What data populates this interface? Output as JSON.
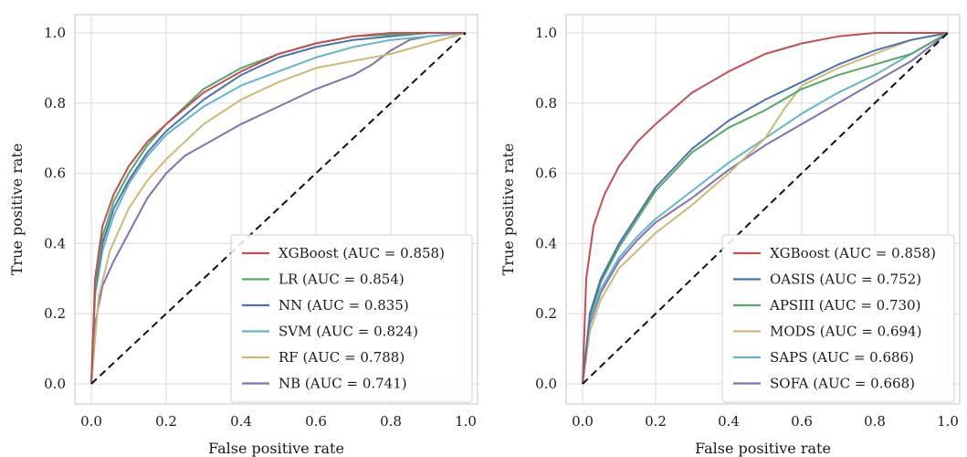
{
  "chart_data": [
    {
      "type": "line",
      "xlabel": "False positive rate",
      "ylabel": "True positive rate",
      "xlim": [
        0,
        1
      ],
      "ylim": [
        0,
        1
      ],
      "xticks": [
        "0.0",
        "0.2",
        "0.4",
        "0.6",
        "0.8",
        "1.0"
      ],
      "yticks": [
        "0.0",
        "0.2",
        "0.4",
        "0.6",
        "0.8",
        "1.0"
      ],
      "grid": true,
      "legend_position": "bottom-right",
      "reference_line": {
        "x": [
          0,
          1
        ],
        "y": [
          0,
          1
        ],
        "style": "dashed",
        "color": "#111111"
      },
      "series": [
        {
          "name": "XGBoost (AUC = 0.858)",
          "color": "#c44e52",
          "x": [
            0,
            0.01,
            0.03,
            0.06,
            0.1,
            0.15,
            0.2,
            0.3,
            0.4,
            0.5,
            0.6,
            0.7,
            0.8,
            0.9,
            1.0
          ],
          "y": [
            0,
            0.3,
            0.45,
            0.54,
            0.62,
            0.69,
            0.74,
            0.83,
            0.89,
            0.94,
            0.97,
            0.99,
            1.0,
            1.0,
            1.0
          ]
        },
        {
          "name": "LR (AUC = 0.854)",
          "color": "#55a868",
          "x": [
            0,
            0.01,
            0.03,
            0.06,
            0.1,
            0.15,
            0.2,
            0.3,
            0.4,
            0.5,
            0.6,
            0.7,
            0.8,
            0.9,
            1.0
          ],
          "y": [
            0,
            0.28,
            0.42,
            0.52,
            0.6,
            0.68,
            0.74,
            0.84,
            0.9,
            0.94,
            0.97,
            0.99,
            0.995,
            1.0,
            1.0
          ]
        },
        {
          "name": "NN (AUC = 0.835)",
          "color": "#4c72b0",
          "x": [
            0,
            0.01,
            0.03,
            0.06,
            0.1,
            0.15,
            0.2,
            0.3,
            0.4,
            0.5,
            0.6,
            0.7,
            0.8,
            0.9,
            1.0
          ],
          "y": [
            0,
            0.27,
            0.4,
            0.5,
            0.58,
            0.66,
            0.72,
            0.81,
            0.88,
            0.93,
            0.96,
            0.98,
            0.99,
            1.0,
            1.0
          ]
        },
        {
          "name": "SVM (AUC = 0.824)",
          "color": "#64b5cd",
          "x": [
            0,
            0.01,
            0.03,
            0.06,
            0.1,
            0.15,
            0.2,
            0.3,
            0.4,
            0.5,
            0.6,
            0.7,
            0.8,
            0.9,
            1.0
          ],
          "y": [
            0,
            0.25,
            0.38,
            0.48,
            0.57,
            0.65,
            0.71,
            0.79,
            0.85,
            0.89,
            0.93,
            0.96,
            0.98,
            0.99,
            1.0
          ]
        },
        {
          "name": "RF (AUC = 0.788)",
          "color": "#ccb974",
          "x": [
            0,
            0.02,
            0.05,
            0.1,
            0.15,
            0.2,
            0.3,
            0.4,
            0.5,
            0.6,
            0.7,
            0.8,
            0.9,
            1.0
          ],
          "y": [
            0,
            0.25,
            0.38,
            0.5,
            0.58,
            0.64,
            0.74,
            0.81,
            0.86,
            0.9,
            0.92,
            0.94,
            0.97,
            1.0
          ]
        },
        {
          "name": "NB (AUC = 0.741)",
          "color": "#8172b2",
          "x": [
            0,
            0.01,
            0.03,
            0.06,
            0.1,
            0.15,
            0.2,
            0.25,
            0.3,
            0.4,
            0.5,
            0.6,
            0.7,
            0.75,
            0.8,
            0.85,
            0.9,
            1.0
          ],
          "y": [
            0,
            0.17,
            0.28,
            0.35,
            0.43,
            0.53,
            0.6,
            0.65,
            0.68,
            0.74,
            0.79,
            0.84,
            0.88,
            0.91,
            0.95,
            0.98,
            0.99,
            1.0
          ]
        }
      ]
    },
    {
      "type": "line",
      "xlabel": "False positive rate",
      "ylabel": "True positive rate",
      "xlim": [
        0,
        1
      ],
      "ylim": [
        0,
        1
      ],
      "xticks": [
        "0.0",
        "0.2",
        "0.4",
        "0.6",
        "0.8",
        "1.0"
      ],
      "yticks": [
        "0.0",
        "0.2",
        "0.4",
        "0.6",
        "0.8",
        "1.0"
      ],
      "grid": true,
      "legend_position": "bottom-right",
      "reference_line": {
        "x": [
          0,
          1
        ],
        "y": [
          0,
          1
        ],
        "style": "dashed",
        "color": "#111111"
      },
      "series": [
        {
          "name": "XGBoost (AUC = 0.858)",
          "color": "#c44e52",
          "x": [
            0,
            0.01,
            0.03,
            0.06,
            0.1,
            0.15,
            0.2,
            0.3,
            0.4,
            0.5,
            0.6,
            0.7,
            0.8,
            0.9,
            1.0
          ],
          "y": [
            0,
            0.3,
            0.45,
            0.54,
            0.62,
            0.69,
            0.74,
            0.83,
            0.89,
            0.94,
            0.97,
            0.99,
            1.0,
            1.0,
            1.0
          ]
        },
        {
          "name": "OASIS (AUC = 0.752)",
          "color": "#4c72b0",
          "x": [
            0,
            0.02,
            0.05,
            0.1,
            0.15,
            0.2,
            0.3,
            0.4,
            0.5,
            0.6,
            0.7,
            0.8,
            0.9,
            1.0
          ],
          "y": [
            0,
            0.2,
            0.3,
            0.4,
            0.48,
            0.56,
            0.67,
            0.75,
            0.81,
            0.86,
            0.91,
            0.95,
            0.98,
            1.0
          ]
        },
        {
          "name": "APSIII (AUC = 0.730)",
          "color": "#55a868",
          "x": [
            0,
            0.02,
            0.05,
            0.1,
            0.15,
            0.2,
            0.3,
            0.4,
            0.5,
            0.6,
            0.7,
            0.8,
            0.9,
            1.0
          ],
          "y": [
            0,
            0.19,
            0.29,
            0.39,
            0.47,
            0.55,
            0.66,
            0.73,
            0.78,
            0.84,
            0.88,
            0.91,
            0.94,
            1.0
          ]
        },
        {
          "name": "MODS (AUC = 0.694)",
          "color": "#ccb974",
          "x": [
            0,
            0.02,
            0.05,
            0.1,
            0.15,
            0.2,
            0.3,
            0.4,
            0.5,
            0.55,
            0.6,
            0.7,
            0.8,
            0.9,
            1.0
          ],
          "y": [
            0,
            0.15,
            0.24,
            0.33,
            0.38,
            0.43,
            0.51,
            0.6,
            0.7,
            0.78,
            0.85,
            0.9,
            0.94,
            0.98,
            1.0
          ]
        },
        {
          "name": "SAPS (AUC = 0.686)",
          "color": "#64b5cd",
          "x": [
            0,
            0.02,
            0.05,
            0.1,
            0.15,
            0.2,
            0.3,
            0.4,
            0.5,
            0.6,
            0.7,
            0.8,
            0.9,
            1.0
          ],
          "y": [
            0,
            0.18,
            0.27,
            0.36,
            0.42,
            0.47,
            0.55,
            0.63,
            0.7,
            0.77,
            0.83,
            0.88,
            0.94,
            1.0
          ]
        },
        {
          "name": "SOFA (AUC = 0.668)",
          "color": "#8172b2",
          "x": [
            0,
            0.02,
            0.05,
            0.1,
            0.15,
            0.2,
            0.3,
            0.4,
            0.5,
            0.6,
            0.7,
            0.8,
            0.9,
            1.0
          ],
          "y": [
            0,
            0.17,
            0.26,
            0.35,
            0.41,
            0.46,
            0.53,
            0.61,
            0.68,
            0.74,
            0.8,
            0.86,
            0.92,
            1.0
          ]
        }
      ]
    }
  ]
}
